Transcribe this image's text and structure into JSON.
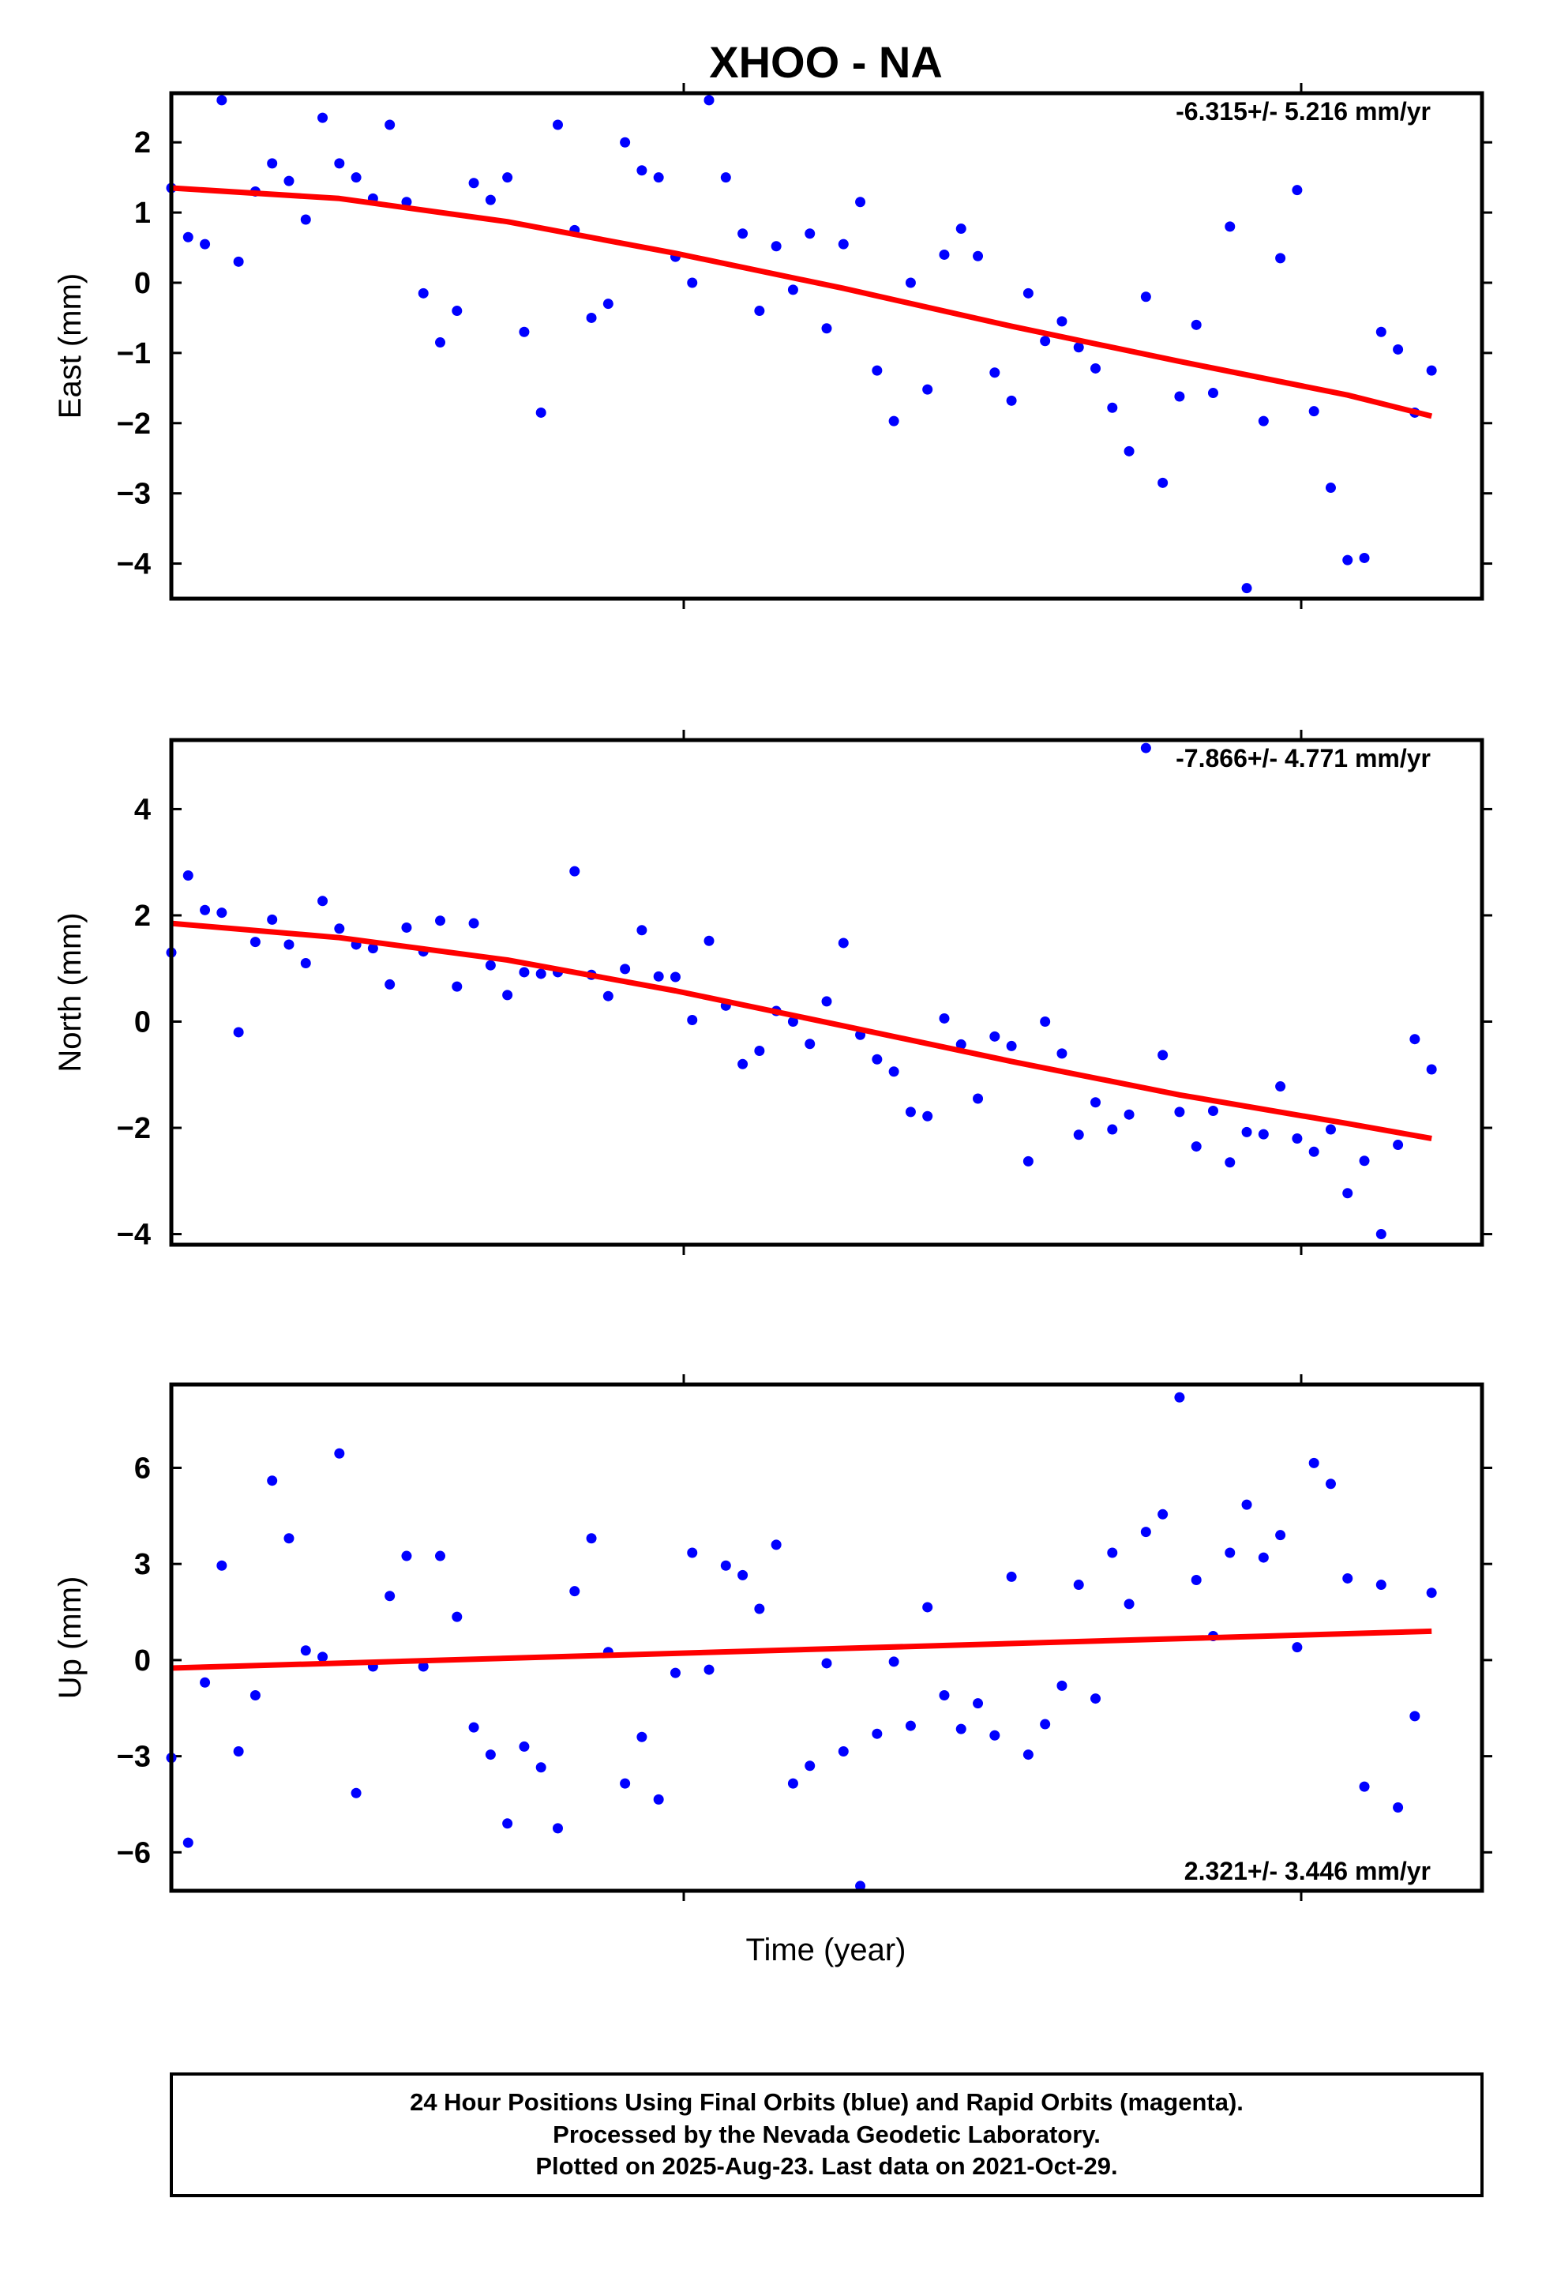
{
  "title": "XHOO - NA",
  "xlabel": "Time (year)",
  "footer": {
    "line1": "24 Hour Positions Using Final Orbits (blue) and Rapid Orbits (magenta).",
    "line2": "Processed by the Nevada Geodetic Laboratory.",
    "line3": "Plotted on 2025-Aug-23. Last data on 2021-Oct-29."
  },
  "colors": {
    "points": "#0000ff",
    "fit": "#ff0000",
    "frame": "#000000"
  },
  "chart_data": [
    {
      "type": "scatter",
      "name": "east",
      "ylabel": "East (mm)",
      "rate_text": "-6.315+/- 5.216 mm/yr",
      "rate_position": "top-right",
      "xlim": [
        0,
        78
      ],
      "ylim": [
        -4.5,
        2.7
      ],
      "yticks": [
        2,
        1,
        0,
        -1,
        -2,
        -3,
        -4
      ],
      "ytick_labels": [
        "2",
        "1",
        "0",
        "−1",
        "−2",
        "−3",
        "−4"
      ],
      "x": [
        0,
        1,
        2,
        3,
        4,
        5,
        6,
        7,
        8,
        9,
        10,
        11,
        12,
        13,
        14,
        15,
        16,
        17,
        18,
        19,
        20,
        21,
        22,
        23,
        24,
        25,
        26,
        27,
        28,
        29,
        30,
        31,
        32,
        33,
        34,
        35,
        36,
        37,
        38,
        39,
        40,
        41,
        42,
        43,
        44,
        45,
        46,
        47,
        48,
        49,
        50,
        51,
        52,
        53,
        54,
        55,
        56,
        57,
        58,
        59,
        60,
        61,
        62,
        63,
        64,
        65,
        66,
        67,
        68,
        69,
        70,
        71,
        72,
        73,
        74,
        75
      ],
      "y": [
        1.35,
        0.65,
        0.55,
        2.6,
        0.3,
        1.3,
        1.7,
        1.45,
        0.9,
        2.35,
        1.7,
        1.5,
        1.2,
        2.25,
        1.15,
        -0.15,
        -0.85,
        -0.4,
        1.42,
        1.18,
        1.5,
        -0.7,
        -1.85,
        2.25,
        0.75,
        -0.5,
        -0.3,
        2.0,
        1.6,
        1.5,
        0.37,
        0.0,
        2.6,
        1.5,
        0.7,
        -0.4,
        0.52,
        -0.1,
        0.7,
        -0.65,
        0.55,
        1.15,
        -1.25,
        -1.97,
        0.0,
        -1.52,
        0.4,
        0.77,
        0.38,
        -1.28,
        -1.68,
        -0.15,
        -0.83,
        -0.55,
        -0.92,
        -1.22,
        -1.78,
        -2.4,
        -0.2,
        -2.85,
        -1.62,
        -0.6,
        -1.57,
        0.8,
        -4.35,
        -1.97,
        0.35,
        1.32,
        -1.83,
        -2.92,
        -3.95,
        -3.92,
        -0.7,
        -0.95,
        -1.85,
        -1.25
      ],
      "fit_x": [
        0,
        75
      ],
      "fit_curve": [
        [
          0,
          1.35
        ],
        [
          10,
          1.2
        ],
        [
          20,
          0.87
        ],
        [
          30,
          0.42
        ],
        [
          40,
          -0.08
        ],
        [
          50,
          -0.62
        ],
        [
          60,
          -1.12
        ],
        [
          70,
          -1.6
        ],
        [
          75,
          -1.9
        ]
      ]
    },
    {
      "type": "scatter",
      "name": "north",
      "ylabel": "North (mm)",
      "rate_text": "-7.866+/- 4.771 mm/yr",
      "rate_position": "top-right",
      "xlim": [
        0,
        78
      ],
      "ylim": [
        -4.2,
        5.3
      ],
      "yticks": [
        4,
        2,
        0,
        -2,
        -4
      ],
      "ytick_labels": [
        "4",
        "2",
        "0",
        "−2",
        "−4"
      ],
      "x": [
        0,
        1,
        2,
        3,
        4,
        5,
        6,
        7,
        8,
        9,
        10,
        11,
        12,
        13,
        14,
        15,
        16,
        17,
        18,
        19,
        20,
        21,
        22,
        23,
        24,
        25,
        26,
        27,
        28,
        29,
        30,
        31,
        32,
        33,
        34,
        35,
        36,
        37,
        38,
        39,
        40,
        41,
        42,
        43,
        44,
        45,
        46,
        47,
        48,
        49,
        50,
        51,
        52,
        53,
        54,
        55,
        56,
        57,
        58,
        59,
        60,
        61,
        62,
        63,
        64,
        65,
        66,
        67,
        68,
        69,
        70,
        71,
        72,
        73,
        74,
        75
      ],
      "y": [
        1.3,
        2.75,
        2.1,
        2.05,
        -0.2,
        1.5,
        1.92,
        1.45,
        1.1,
        2.27,
        1.75,
        1.45,
        1.38,
        0.7,
        1.77,
        1.32,
        1.9,
        0.66,
        1.85,
        1.06,
        0.5,
        0.93,
        0.9,
        0.93,
        2.83,
        0.88,
        0.48,
        0.99,
        1.72,
        0.85,
        0.84,
        0.03,
        1.52,
        0.3,
        -0.8,
        -0.55,
        0.2,
        0.0,
        -0.42,
        0.38,
        1.48,
        -0.25,
        -0.71,
        -0.94,
        -1.7,
        -1.78,
        0.06,
        -0.43,
        -1.45,
        -0.28,
        -0.46,
        -2.63,
        0.0,
        -0.6,
        -2.13,
        -1.52,
        -2.03,
        -1.75,
        5.15,
        -0.63,
        -1.7,
        -2.35,
        -1.68,
        -2.65,
        -2.08,
        -2.12,
        -1.22,
        -2.2,
        -2.45,
        -2.03,
        -3.23,
        -2.62,
        -4.0,
        -2.32,
        -0.33,
        -0.9
      ],
      "fit_x": [
        0,
        75
      ],
      "fit_curve": [
        [
          0,
          1.85
        ],
        [
          10,
          1.58
        ],
        [
          20,
          1.16
        ],
        [
          30,
          0.58
        ],
        [
          40,
          -0.08
        ],
        [
          50,
          -0.75
        ],
        [
          60,
          -1.38
        ],
        [
          70,
          -1.92
        ],
        [
          75,
          -2.2
        ]
      ]
    },
    {
      "type": "scatter",
      "name": "up",
      "ylabel": "Up (mm)",
      "rate_text": "2.321+/- 3.446 mm/yr",
      "rate_position": "bottom-right",
      "xlim": [
        0,
        78
      ],
      "ylim": [
        -7.2,
        8.6
      ],
      "yticks": [
        6,
        3,
        0,
        -3,
        -6
      ],
      "ytick_labels": [
        "6",
        "3",
        "0",
        "−3",
        "−6"
      ],
      "x": [
        0,
        1,
        2,
        3,
        4,
        5,
        6,
        7,
        8,
        9,
        10,
        11,
        12,
        13,
        14,
        15,
        16,
        17,
        18,
        19,
        20,
        21,
        22,
        23,
        24,
        25,
        26,
        27,
        28,
        29,
        30,
        31,
        32,
        33,
        34,
        35,
        36,
        37,
        38,
        39,
        40,
        41,
        42,
        43,
        44,
        45,
        46,
        47,
        48,
        49,
        50,
        51,
        52,
        53,
        54,
        55,
        56,
        57,
        58,
        59,
        60,
        61,
        62,
        63,
        64,
        65,
        66,
        67,
        68,
        69,
        70,
        71,
        72,
        73,
        74,
        75
      ],
      "y": [
        -3.05,
        -5.7,
        -0.7,
        2.95,
        -2.85,
        -1.1,
        5.6,
        3.8,
        0.3,
        0.1,
        6.45,
        -4.15,
        -0.2,
        2.0,
        3.25,
        -0.2,
        3.25,
        1.35,
        -2.1,
        -2.95,
        -5.1,
        -2.7,
        -3.35,
        -5.25,
        2.15,
        3.8,
        0.25,
        -3.85,
        -2.4,
        -4.35,
        -0.4,
        3.35,
        -0.3,
        2.95,
        2.65,
        1.6,
        3.6,
        -3.85,
        -3.3,
        -0.1,
        -2.85,
        -7.05,
        -2.3,
        -0.05,
        -2.05,
        1.65,
        -1.1,
        -2.15,
        -1.35,
        -2.35,
        2.6,
        -2.95,
        -2.0,
        -0.8,
        2.35,
        -1.2,
        3.35,
        1.75,
        4.0,
        4.55,
        8.2,
        2.5,
        0.75,
        3.35,
        4.85,
        3.2,
        3.9,
        0.4,
        6.15,
        5.5,
        2.55,
        -3.95,
        2.35,
        -4.6,
        -1.75,
        2.1
      ],
      "fit_x": [
        0,
        75
      ],
      "fit_curve": [
        [
          0,
          -0.25
        ],
        [
          75,
          0.9
        ]
      ]
    }
  ]
}
